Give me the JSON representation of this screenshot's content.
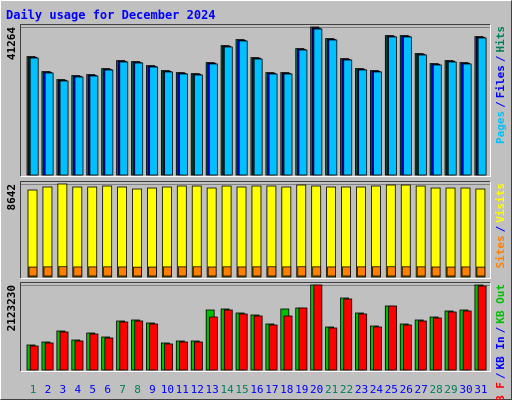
{
  "chart_data": [
    {
      "type": "bar",
      "title": "Daily usage for December 2024",
      "ylim": [
        0,
        41264
      ],
      "yticks": [
        41264
      ],
      "grid": true,
      "legend_separator": "/",
      "series": [
        {
          "name": "Pages",
          "color": "#00c0ff",
          "values": [
            32620,
            28440,
            26210,
            27320,
            27600,
            29280,
            31510,
            31230,
            30110,
            28720,
            28160,
            27880,
            30950,
            35690,
            37360,
            32340,
            28160,
            28160,
            34850,
            40700,
            37640,
            32060,
            29280,
            28720,
            38480,
            38480,
            33460,
            30670,
            31510,
            30950,
            38200
          ]
        },
        {
          "name": "Files",
          "color": "#0000ff",
          "values": [
            32820,
            28640,
            26410,
            27520,
            27800,
            29480,
            31710,
            31430,
            30310,
            28920,
            28360,
            28080,
            31150,
            35890,
            37560,
            32540,
            28360,
            28360,
            35050,
            40980,
            37840,
            32260,
            29480,
            28920,
            38680,
            38680,
            33660,
            30870,
            31710,
            31150,
            38400
          ]
        },
        {
          "name": "Hits",
          "color": "#00805c",
          "values": [
            33020,
            28840,
            26610,
            27720,
            28000,
            29680,
            31910,
            31630,
            30510,
            29120,
            28560,
            28280,
            31350,
            36090,
            37760,
            32740,
            28560,
            28560,
            35250,
            41264,
            38040,
            32460,
            29680,
            29120,
            38880,
            38880,
            33860,
            31070,
            31910,
            31350,
            38600
          ]
        }
      ]
    },
    {
      "type": "bar",
      "ylim": [
        0,
        8642
      ],
      "yticks": [
        8642
      ],
      "grid": true,
      "legend_separator": "/",
      "series": [
        {
          "name": "Sites",
          "color": "#ff8000",
          "values": [
            830,
            850,
            860,
            840,
            845,
            850,
            840,
            820,
            830,
            845,
            850,
            855,
            835,
            850,
            840,
            850,
            855,
            845,
            860,
            850,
            840,
            845,
            850,
            855,
            860,
            855,
            850,
            835,
            830,
            840,
            825
          ]
        },
        {
          "name": "Visits",
          "color": "#ffff00",
          "values": [
            8083,
            8362,
            8642,
            8362,
            8362,
            8454,
            8362,
            8176,
            8269,
            8362,
            8454,
            8454,
            8269,
            8454,
            8362,
            8454,
            8454,
            8362,
            8547,
            8454,
            8362,
            8362,
            8362,
            8454,
            8547,
            8547,
            8454,
            8269,
            8269,
            8269,
            8176
          ]
        }
      ]
    },
    {
      "type": "bar",
      "ylim": [
        0,
        2123230
      ],
      "yticks": [
        2123230
      ],
      "grid": true,
      "legend_separator": "/",
      "categories": [
        "1",
        "2",
        "3",
        "4",
        "5",
        "6",
        "7",
        "8",
        "9",
        "10",
        "11",
        "12",
        "13",
        "14",
        "15",
        "16",
        "17",
        "18",
        "19",
        "20",
        "21",
        "22",
        "23",
        "24",
        "25",
        "26",
        "27",
        "28",
        "29",
        "30",
        "31"
      ],
      "category_colors": [
        "#00805c",
        "#0000ff",
        "#0000ff",
        "#0000ff",
        "#0000ff",
        "#0000ff",
        "#00805c",
        "#00805c",
        "#0000ff",
        "#0000ff",
        "#0000ff",
        "#0000ff",
        "#0000ff",
        "#00805c",
        "#00805c",
        "#0000ff",
        "#0000ff",
        "#0000ff",
        "#0000ff",
        "#0000ff",
        "#00805c",
        "#00805c",
        "#0000ff",
        "#0000ff",
        "#0000ff",
        "#0000ff",
        "#0000ff",
        "#00805c",
        "#00805c",
        "#0000ff",
        "#0000ff"
      ],
      "series": [
        {
          "name": "KB F",
          "color": "#ff0000",
          "values": [
            599500,
            674430,
            949200,
            724390,
            899240,
            799330,
            1198990,
            1223970,
            1149030,
            649450,
            699400,
            699400,
            1323890,
            1498740,
            1398820,
            1348870,
            1124070,
            1348870,
            1548700,
            2123230,
            1049140,
            1773530,
            1398820,
            1074100,
            1598660,
            1124070,
            1223970,
            1298910,
            1448780,
            1473760,
            2098250
          ]
        },
        {
          "name": "KB In",
          "color": "#0000ff",
          "values": [
            0,
            0,
            0,
            0,
            0,
            0,
            0,
            0,
            0,
            0,
            0,
            0,
            0,
            0,
            0,
            0,
            0,
            0,
            0,
            0,
            0,
            0,
            0,
            0,
            0,
            0,
            0,
            0,
            0,
            0,
            0
          ]
        },
        {
          "name": "KB Out",
          "color": "#00c000",
          "values": [
            624480,
            699400,
            974180,
            749370,
            924220,
            824310,
            1223970,
            1248950,
            1174010,
            674430,
            724390,
            724390,
            1498740,
            1523720,
            1423800,
            1373850,
            1149030,
            1523720,
            1548700,
            2123230,
            1074100,
            1798490,
            1423800,
            1099080,
            1598660,
            1149030,
            1248950,
            1323890,
            1473760,
            1498740,
            2123230
          ]
        }
      ]
    }
  ]
}
